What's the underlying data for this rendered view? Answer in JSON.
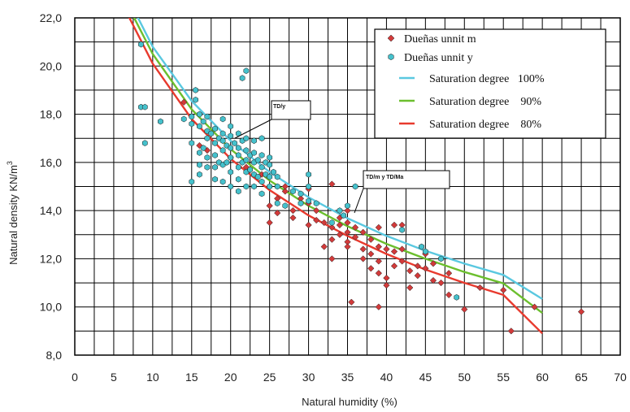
{
  "chart_data": {
    "type": "scatter",
    "title": "",
    "xlabel": "Natural humidity (%)",
    "ylabel": "Natural density KN/m",
    "ylabel_sup": "3",
    "xlim": [
      0,
      70
    ],
    "ylim": [
      8,
      22
    ],
    "x_ticks": [
      "0",
      "5",
      "10",
      "15",
      "20",
      "25",
      "30",
      "35",
      "40",
      "45",
      "50",
      "55",
      "60",
      "65",
      "70"
    ],
    "y_ticks": [
      "8,0",
      "10,0",
      "12,0",
      "14,0",
      "16,0",
      "18,0",
      "20,0",
      "22,0"
    ],
    "grid": true,
    "legend_position": "top-right",
    "series": [
      {
        "name": "Dueñas unnit m",
        "kind": "points",
        "marker": "diamond",
        "color": "#d23a3a",
        "points": [
          [
            14,
            18.5
          ],
          [
            16,
            16.7
          ],
          [
            17,
            16.5
          ],
          [
            20,
            16.2
          ],
          [
            22,
            15.8
          ],
          [
            24,
            15.5
          ],
          [
            25,
            15.0
          ],
          [
            25,
            14.2
          ],
          [
            25,
            13.5
          ],
          [
            26,
            14.5
          ],
          [
            26,
            13.9
          ],
          [
            27,
            14.8
          ],
          [
            27,
            15.0
          ],
          [
            28,
            14.0
          ],
          [
            28,
            13.7
          ],
          [
            29,
            14.5
          ],
          [
            30,
            14.9
          ],
          [
            30,
            14.3
          ],
          [
            30,
            13.4
          ],
          [
            31,
            14.0
          ],
          [
            31,
            13.6
          ],
          [
            32,
            13.5
          ],
          [
            32,
            12.5
          ],
          [
            33,
            15.1
          ],
          [
            33,
            13.3
          ],
          [
            33,
            12.8
          ],
          [
            33,
            12.0
          ],
          [
            34,
            13.7
          ],
          [
            34,
            13.4
          ],
          [
            34,
            13.0
          ],
          [
            35,
            13.5
          ],
          [
            35,
            13.1
          ],
          [
            35,
            12.7
          ],
          [
            35,
            14.0
          ],
          [
            35,
            12.5
          ],
          [
            35.5,
            10.2
          ],
          [
            36,
            13.3
          ],
          [
            36,
            12.9
          ],
          [
            37,
            13.1
          ],
          [
            37,
            12.4
          ],
          [
            37,
            12.0
          ],
          [
            38,
            12.8
          ],
          [
            38,
            12.2
          ],
          [
            38,
            11.6
          ],
          [
            39,
            13.3
          ],
          [
            39,
            12.5
          ],
          [
            39,
            11.9
          ],
          [
            39,
            11.4
          ],
          [
            39,
            10.0
          ],
          [
            40,
            12.4
          ],
          [
            40,
            11.2
          ],
          [
            40,
            10.9
          ],
          [
            41,
            13.4
          ],
          [
            41,
            12.3
          ],
          [
            41,
            11.7
          ],
          [
            42,
            13.4
          ],
          [
            42,
            12.4
          ],
          [
            42,
            11.9
          ],
          [
            43,
            11.5
          ],
          [
            43,
            10.8
          ],
          [
            44,
            11.3
          ],
          [
            44,
            11.7
          ],
          [
            45,
            12.2
          ],
          [
            45,
            11.6
          ],
          [
            46,
            11.8
          ],
          [
            46,
            11.1
          ],
          [
            47,
            11.0
          ],
          [
            48,
            11.4
          ],
          [
            48,
            10.5
          ],
          [
            50,
            9.9
          ],
          [
            52,
            10.8
          ],
          [
            55,
            10.7
          ],
          [
            56,
            9.0
          ],
          [
            59,
            10.0
          ],
          [
            65,
            9.8
          ]
        ]
      },
      {
        "name": "Dueñas unnit y",
        "kind": "points",
        "marker": "hexagon",
        "color": "#45c1cc",
        "points": [
          [
            8.5,
            20.9
          ],
          [
            8.5,
            18.3
          ],
          [
            9,
            18.3
          ],
          [
            9,
            16.8
          ],
          [
            11,
            17.7
          ],
          [
            14,
            17.8
          ],
          [
            15,
            17.9
          ],
          [
            15,
            17.6
          ],
          [
            15,
            16.8
          ],
          [
            15,
            15.2
          ],
          [
            15.5,
            19.0
          ],
          [
            15.5,
            18.6
          ],
          [
            16,
            18.0
          ],
          [
            16,
            17.5
          ],
          [
            16,
            16.4
          ],
          [
            16,
            15.9
          ],
          [
            16,
            15.5
          ],
          [
            16.5,
            17.7
          ],
          [
            16.5,
            16.6
          ],
          [
            17,
            17.9
          ],
          [
            17,
            17.3
          ],
          [
            17,
            17.0
          ],
          [
            17,
            16.2
          ],
          [
            17,
            15.8
          ],
          [
            17.5,
            17.2
          ],
          [
            18,
            17.4
          ],
          [
            18,
            16.8
          ],
          [
            18,
            16.3
          ],
          [
            18,
            15.8
          ],
          [
            18,
            15.3
          ],
          [
            18.5,
            17.0
          ],
          [
            18.5,
            16.0
          ],
          [
            19,
            17.8
          ],
          [
            19,
            17.2
          ],
          [
            19,
            16.9
          ],
          [
            19,
            16.5
          ],
          [
            19,
            15.9
          ],
          [
            19,
            15.2
          ],
          [
            19.5,
            16.7
          ],
          [
            19.5,
            16.0
          ],
          [
            20,
            17.5
          ],
          [
            20,
            17.1
          ],
          [
            20,
            16.6
          ],
          [
            20,
            16.2
          ],
          [
            20,
            15.6
          ],
          [
            20,
            15.0
          ],
          [
            20.5,
            16.8
          ],
          [
            21,
            17.2
          ],
          [
            21,
            16.6
          ],
          [
            21,
            16.3
          ],
          [
            21,
            15.8
          ],
          [
            21,
            15.3
          ],
          [
            21,
            14.8
          ],
          [
            21.5,
            19.5
          ],
          [
            21.5,
            16.9
          ],
          [
            21.5,
            16.0
          ],
          [
            22,
            19.8
          ],
          [
            22,
            17.0
          ],
          [
            22,
            16.5
          ],
          [
            22,
            16.1
          ],
          [
            22,
            15.6
          ],
          [
            22,
            15.0
          ],
          [
            22.5,
            16.3
          ],
          [
            22.5,
            15.7
          ],
          [
            23,
            16.9
          ],
          [
            23,
            16.4
          ],
          [
            23,
            16.0
          ],
          [
            23,
            15.5
          ],
          [
            23,
            15.0
          ],
          [
            23.5,
            16.1
          ],
          [
            23.5,
            15.4
          ],
          [
            24,
            17.0
          ],
          [
            24,
            16.3
          ],
          [
            24,
            15.8
          ],
          [
            24,
            15.2
          ],
          [
            24,
            14.7
          ],
          [
            24.5,
            16.0
          ],
          [
            24.5,
            15.5
          ],
          [
            25,
            16.2
          ],
          [
            25,
            15.9
          ],
          [
            25,
            15.4
          ],
          [
            25,
            15.0
          ],
          [
            25.5,
            15.6
          ],
          [
            26,
            15.4
          ],
          [
            26,
            15.0
          ],
          [
            26,
            14.3
          ],
          [
            27,
            14.2
          ],
          [
            28,
            14.8
          ],
          [
            29,
            14.7
          ],
          [
            29,
            14.3
          ],
          [
            30,
            15.5
          ],
          [
            30,
            15.0
          ],
          [
            30,
            14.4
          ],
          [
            31,
            14.3
          ],
          [
            33,
            13.5
          ],
          [
            34,
            14.0
          ],
          [
            34.5,
            13.8
          ],
          [
            35,
            14.2
          ],
          [
            36,
            15.0
          ],
          [
            42,
            13.2
          ],
          [
            44.5,
            12.5
          ],
          [
            45,
            12.3
          ],
          [
            47,
            12.0
          ],
          [
            49,
            10.4
          ]
        ]
      },
      {
        "name": "Saturation degree   100%",
        "kind": "curve",
        "color": "#5ac8e0",
        "x": [
          7.8,
          10,
          15,
          20,
          25,
          30,
          35,
          40,
          45,
          50,
          55,
          60
        ],
        "y": [
          22.2,
          20.8,
          18.55,
          16.9,
          15.6,
          14.55,
          13.68,
          12.95,
          12.33,
          11.8,
          11.33,
          10.33
        ]
      },
      {
        "name": "Saturation degree    90%",
        "kind": "curve",
        "color": "#6cbf2e",
        "x": [
          7.3,
          10,
          15,
          20,
          25,
          30,
          35,
          40,
          45,
          50,
          55,
          60
        ],
        "y": [
          22.2,
          20.5,
          18.2,
          16.55,
          15.25,
          14.2,
          13.35,
          12.62,
          12.0,
          11.45,
          10.98,
          9.75
        ]
      },
      {
        "name": "Saturation degree    80%",
        "kind": "curve",
        "color": "#e83a2e",
        "x": [
          6.7,
          10,
          15,
          20,
          25,
          30,
          35,
          40,
          45,
          50,
          55,
          60
        ],
        "y": [
          22.2,
          20.1,
          17.8,
          16.15,
          14.85,
          13.8,
          12.95,
          12.2,
          11.55,
          11.0,
          10.5,
          8.9
        ]
      }
    ],
    "annotations": [
      {
        "text": "TD/y"
      },
      {
        "text": "TD/m y TD/Ma"
      }
    ]
  }
}
